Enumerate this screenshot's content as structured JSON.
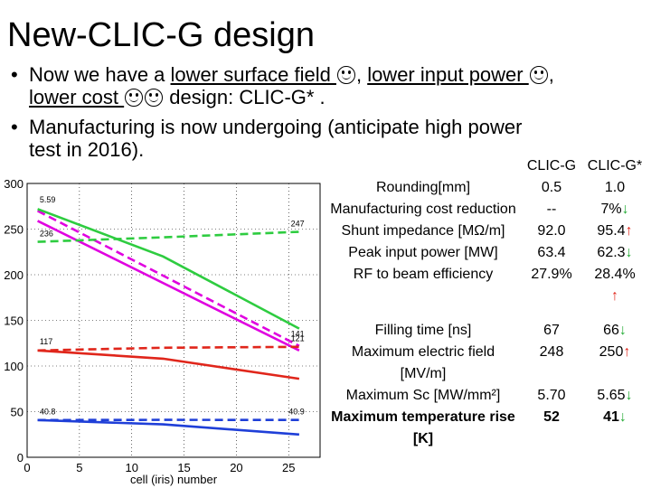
{
  "slide": {
    "title": "New-CLIC-G design",
    "bullet1": {
      "prefix": "Now we have a ",
      "u1": "lower surface field ",
      "mid1": ", ",
      "u2": "lower input power ",
      "mid2": ",",
      "u3": "lower cost ",
      "suffix": " design: CLIC-G* ."
    },
    "bullet2": {
      "text1": "Manufacturing is now undergoing (anticipate high power",
      "text2": "test in 2016)."
    },
    "bullet_symbol": "•",
    "icons": [
      "smiley-icon",
      "smiley-icon",
      "smiley-icon",
      "smiley-icon"
    ]
  },
  "table": {
    "headers": [
      "CLIC-G",
      "CLIC-G*"
    ],
    "rows": [
      {
        "param": "Rounding[mm]",
        "g": "0.5",
        "gs": "1.0",
        "arrow": ""
      },
      {
        "param": "Manufacturing cost reduction",
        "g": "--",
        "gs": "7%",
        "arrow": "down"
      },
      {
        "param": "Shunt impedance [MΩ/m]",
        "g": "92.0",
        "gs": "95.4",
        "arrow": "up"
      },
      {
        "param": "Peak input power [MW]",
        "g": "63.4",
        "gs": "62.3",
        "arrow": "down"
      },
      {
        "param": "RF to beam efficiency",
        "g": "27.9%",
        "gs": "28.4%",
        "arrow": "up-below"
      },
      {
        "param": "Filling time [ns]",
        "g": "67",
        "gs": "66",
        "arrow": "down"
      },
      {
        "param": "Maximum electric field [MV/m]",
        "g": "248",
        "gs": "250",
        "arrow": "up"
      },
      {
        "param": "Maximum Sc [MW/mm²]",
        "g": "5.70",
        "gs": "5.65",
        "arrow": "down"
      },
      {
        "param": "Maximum temperature rise [K]",
        "g": "52",
        "gs": "41",
        "arrow": "down",
        "bold": true
      }
    ],
    "arrow_down": "↓",
    "arrow_up": "↑"
  },
  "chart_data": {
    "type": "line",
    "title": "",
    "xlabel": "cell (iris) number",
    "ylabel": "",
    "xlim": [
      0,
      28
    ],
    "ylim": [
      0,
      300
    ],
    "xticks": [
      0,
      5,
      10,
      15,
      20,
      25
    ],
    "yticks": [
      0,
      50,
      100,
      150,
      200,
      250,
      300
    ],
    "colors": {
      "magenta": "#e000e0",
      "green": "#2ecc40",
      "red": "#e0261b",
      "blue": "#1f3fd8",
      "grid": "#000000"
    },
    "series": [
      {
        "name": "magenta",
        "color": "#e000e0",
        "dash": false,
        "x": [
          1,
          26
        ],
        "y": [
          259,
          117
        ]
      },
      {
        "name": "magenta-dashed",
        "color": "#e000e0",
        "dash": true,
        "x": [
          1,
          26
        ],
        "y": [
          270,
          122
        ]
      },
      {
        "name": "green-dashed",
        "color": "#2ecc40",
        "dash": true,
        "x": [
          1,
          13,
          26
        ],
        "y": [
          236,
          241,
          247
        ]
      },
      {
        "name": "green",
        "color": "#2ecc40",
        "dash": false,
        "x": [
          1,
          13,
          26
        ],
        "y": [
          272,
          220,
          141
        ]
      },
      {
        "name": "red-dashed",
        "color": "#e0261b",
        "dash": true,
        "x": [
          1,
          13,
          26
        ],
        "y": [
          117,
          120,
          121
        ]
      },
      {
        "name": "red",
        "color": "#e0261b",
        "dash": false,
        "x": [
          1,
          13,
          26
        ],
        "y": [
          117,
          108,
          86
        ]
      },
      {
        "name": "blue-dashed",
        "color": "#1f3fd8",
        "dash": true,
        "x": [
          1,
          13,
          26
        ],
        "y": [
          40.8,
          41,
          40.9
        ]
      },
      {
        "name": "blue",
        "color": "#1f3fd8",
        "dash": false,
        "x": [
          1,
          13,
          26
        ],
        "y": [
          40.8,
          36,
          25
        ]
      }
    ],
    "annotations": [
      {
        "text": "5.59",
        "x": 1.2,
        "y": 279
      },
      {
        "text": "236",
        "x": 1.2,
        "y": 242
      },
      {
        "text": "117",
        "x": 1.2,
        "y": 124
      },
      {
        "text": "40.8",
        "x": 1.2,
        "y": 47
      },
      {
        "text": "247",
        "x": 25.2,
        "y": 253
      },
      {
        "text": "141",
        "x": 25.2,
        "y": 132
      },
      {
        "text": "121",
        "x": 25.2,
        "y": 127
      },
      {
        "text": "40.9",
        "x": 25.0,
        "y": 47
      }
    ]
  }
}
